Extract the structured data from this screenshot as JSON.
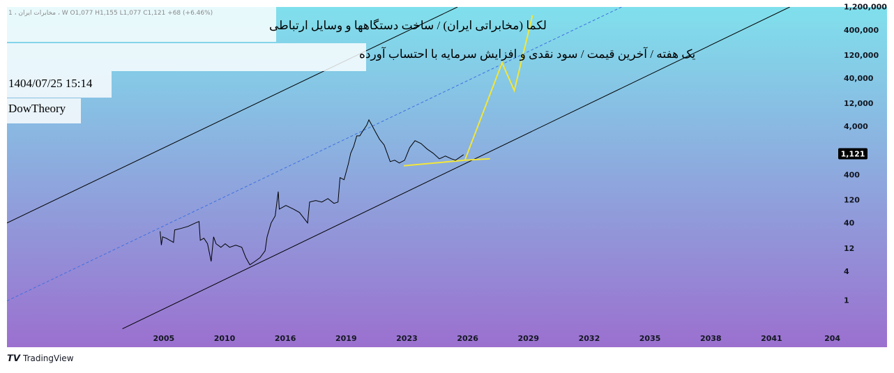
{
  "chart_data": {
    "type": "line",
    "ohlc_legend": "1 ، مخابرات ایران ، W  O1,077  H1,155  L1,077  C1,121  +68 (+6.46%)",
    "title": "لکما (مخابراتی ایران) / ساخت دستگاهها و وسایل ارتباطی",
    "subtitle": "یک هفته / آخرین قیمت / سود نقدی و افزایش سرمایه با احتساب آورده",
    "timestamp": "1404/07/25 15:14",
    "author": "DowTheory",
    "brand": "TradingView",
    "color": "#000000",
    "x": [
      2004.7,
      2004.8,
      2004.9,
      2005.2,
      2005.8,
      2005.9,
      2006.4,
      2007.0,
      2007.6,
      2007.9,
      2008.0,
      2008.3,
      2008.6,
      2008.9,
      2009.1,
      2009.3,
      2009.7,
      2010.06,
      2010.5,
      2011.1,
      2011.7,
      2012.1,
      2012.5,
      2013.0,
      2013.5,
      2014.0,
      2014.2,
      2014.6,
      2015.0,
      2015.3,
      2015.4,
      2016.03,
      2016.4,
      2016.7,
      2017.1,
      2017.2,
      2017.5,
      2017.8,
      2018.1,
      2018.4,
      2018.6,
      2018.7,
      2018.9,
      2019.15,
      2019.3,
      2019.5,
      2019.7,
      2019.9,
      2020.1,
      2020.35,
      2020.5,
      2020.7,
      2020.95,
      2021.2,
      2021.5,
      2021.7,
      2021.9,
      2022.2,
      2022.5,
      2022.85,
      2023.14,
      2023.4,
      2023.7,
      2024.0,
      2024.3,
      2024.6,
      2024.9,
      2025.2,
      2025.4,
      2025.8
    ],
    "values": [
      27.7,
      14.3,
      21.3,
      19.9,
      16.3,
      29.6,
      31.7,
      35.0,
      41.3,
      44.2,
      18.0,
      19.9,
      15.3,
      6.6,
      21.3,
      15.3,
      12.9,
      15.3,
      12.9,
      14.3,
      12.9,
      7.9,
      5.6,
      6.6,
      7.9,
      10.9,
      21.3,
      41.3,
      57.6,
      184,
      80,
      95,
      80,
      68,
      41.3,
      112,
      120,
      112,
      132,
      105,
      112,
      358,
      324,
      696,
      1146,
      1597,
      2630,
      2630,
      3320,
      4330,
      5650,
      4330,
      3100,
      2230,
      1707,
      1146,
      769,
      822,
      720,
      822,
      1495,
      2084,
      1824,
      1399,
      1146,
      879,
      1003,
      879,
      822,
      1072
    ],
    "drawings": [
      {
        "color": "#000000",
        "style": "solid",
        "x": [
          1992.1,
          2025.5
        ],
        "values": [
          41.3,
          1230000
        ]
      },
      {
        "color": "#000000",
        "style": "solid",
        "x": [
          2001.6,
          2041.9
        ],
        "values": [
          0.265,
          1230000
        ]
      },
      {
        "color": "#3f6fe0",
        "style": "dashed",
        "x": [
          1992.1,
          2033.6
        ],
        "values": [
          1,
          1230000
        ]
      },
      {
        "color": "#f2e63a",
        "style": "solid",
        "x": [
          2022.8,
          2025.86,
          2027.1,
          null,
          2025.86,
          2027.7,
          2028.3,
          2029.2
        ],
        "values": [
          630,
          822,
          879,
          null,
          822,
          86100,
          22800,
          824000
        ]
      }
    ],
    "last_price": {
      "value": 1121,
      "label": "1,121"
    },
    "xlim": [
      1992.1,
      2046.7
    ],
    "xticks": [
      2005,
      2010,
      2016,
      2019,
      2023,
      2026,
      2029,
      2032,
      2035,
      2038,
      2041,
      {
        "value": 2044,
        "label": "204"
      }
    ],
    "ylog": true,
    "ylim": [
      0.11,
      1230000
    ],
    "yticks": [
      1,
      4,
      12,
      40,
      120,
      400,
      {
        "value": 4000,
        "label": "4,000"
      },
      {
        "value": 12000,
        "label": "12,000"
      },
      {
        "value": 40000,
        "label": "40,000"
      },
      {
        "value": 120000,
        "label": "120,000"
      },
      {
        "value": 400000,
        "label": "400,000"
      },
      {
        "value": 1200000,
        "label": "1,200,000"
      }
    ]
  }
}
